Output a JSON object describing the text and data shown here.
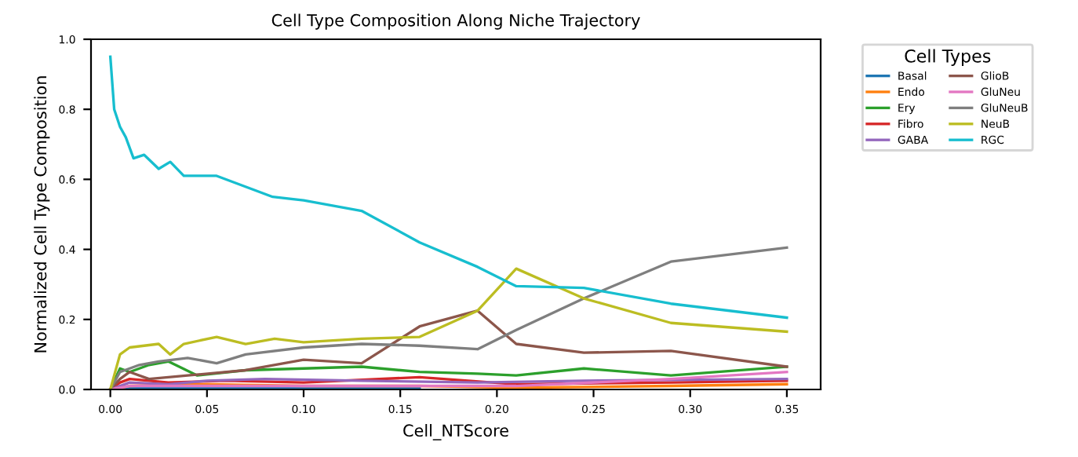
{
  "chart_data": {
    "type": "line",
    "title": "Cell Type Composition Along Niche Trajectory",
    "xlabel": "Cell_NTScore",
    "ylabel": "Normalized Cell Type Composition",
    "legend_title": "Cell Types",
    "legend": "right",
    "grid": false,
    "marker": "none",
    "line_style": "solid",
    "xlim": [
      -0.01,
      0.3675
    ],
    "ylim": [
      0,
      1.0
    ],
    "xticks": [
      {
        "value": 0,
        "label": "0.00"
      },
      {
        "value": 0.05,
        "label": "0.05"
      },
      {
        "value": 0.1,
        "label": "0.10"
      },
      {
        "value": 0.15,
        "label": "0.15"
      },
      {
        "value": 0.2,
        "label": "0.20"
      },
      {
        "value": 0.25,
        "label": "0.25"
      },
      {
        "value": 0.3,
        "label": "0.30"
      },
      {
        "value": 0.35,
        "label": "0.35"
      }
    ],
    "yticks": [
      {
        "value": 0,
        "label": "0.0"
      },
      {
        "value": 0.2,
        "label": "0.2"
      },
      {
        "value": 0.4,
        "label": "0.4"
      },
      {
        "value": 0.6,
        "label": "0.6"
      },
      {
        "value": 0.8,
        "label": "0.8"
      },
      {
        "value": 1.0,
        "label": "1.0"
      }
    ],
    "series": [
      {
        "name": "Basal",
        "color": "#1f77b4",
        "x": [
          0,
          0.01,
          0.05,
          0.1,
          0.16
        ],
        "values": [
          0,
          0.005,
          0.005,
          0.005,
          0.005
        ]
      },
      {
        "name": "Endo",
        "color": "#ff7f0e",
        "x": [
          0,
          0.01,
          0.05,
          0.1,
          0.16,
          0.21,
          0.29,
          0.35
        ],
        "values": [
          0,
          0.01,
          0.015,
          0.01,
          0.01,
          0.005,
          0.01,
          0.015
        ]
      },
      {
        "name": "Ery",
        "color": "#2ca02c",
        "x": [
          0,
          0.005,
          0.01,
          0.02,
          0.03,
          0.045,
          0.07,
          0.1,
          0.13,
          0.16,
          0.19,
          0.21,
          0.245,
          0.29,
          0.35
        ],
        "values": [
          0,
          0.06,
          0.05,
          0.07,
          0.08,
          0.04,
          0.055,
          0.06,
          0.065,
          0.05,
          0.045,
          0.04,
          0.06,
          0.04,
          0.065
        ]
      },
      {
        "name": "Fibro",
        "color": "#d62728",
        "x": [
          0,
          0.005,
          0.01,
          0.03,
          0.06,
          0.1,
          0.16,
          0.21,
          0.29,
          0.35
        ],
        "values": [
          0,
          0.02,
          0.03,
          0.02,
          0.025,
          0.02,
          0.035,
          0.015,
          0.02,
          0.025
        ]
      },
      {
        "name": "GABA",
        "color": "#9467bd",
        "x": [
          0,
          0.01,
          0.03,
          0.05,
          0.08,
          0.13,
          0.19,
          0.245,
          0.35
        ],
        "values": [
          0,
          0.02,
          0.015,
          0.025,
          0.03,
          0.025,
          0.02,
          0.025,
          0.03
        ]
      },
      {
        "name": "GlioB",
        "color": "#8c564b",
        "x": [
          0,
          0.005,
          0.01,
          0.02,
          0.04,
          0.07,
          0.1,
          0.13,
          0.16,
          0.19,
          0.21,
          0.245,
          0.29,
          0.35
        ],
        "values": [
          0,
          0.03,
          0.05,
          0.03,
          0.04,
          0.055,
          0.085,
          0.075,
          0.18,
          0.225,
          0.13,
          0.105,
          0.11,
          0.065
        ]
      },
      {
        "name": "GluNeu",
        "color": "#e377c2",
        "x": [
          0,
          0.01,
          0.05,
          0.1,
          0.16,
          0.21,
          0.29,
          0.35
        ],
        "values": [
          0,
          0.01,
          0.01,
          0.01,
          0.01,
          0.01,
          0.03,
          0.05
        ]
      },
      {
        "name": "GluNeuB",
        "color": "#7f7f7f",
        "x": [
          0,
          0.005,
          0.015,
          0.025,
          0.04,
          0.055,
          0.07,
          0.1,
          0.13,
          0.16,
          0.19,
          0.21,
          0.245,
          0.29,
          0.35
        ],
        "values": [
          0,
          0.05,
          0.07,
          0.08,
          0.09,
          0.075,
          0.1,
          0.12,
          0.13,
          0.125,
          0.115,
          0.17,
          0.26,
          0.365,
          0.405
        ]
      },
      {
        "name": "NeuB",
        "color": "#bcbd22",
        "x": [
          0,
          0.005,
          0.01,
          0.025,
          0.031,
          0.038,
          0.055,
          0.07,
          0.085,
          0.1,
          0.13,
          0.16,
          0.19,
          0.21,
          0.245,
          0.29,
          0.35
        ],
        "values": [
          0,
          0.1,
          0.12,
          0.13,
          0.1,
          0.13,
          0.15,
          0.13,
          0.145,
          0.135,
          0.145,
          0.15,
          0.225,
          0.345,
          0.26,
          0.19,
          0.165
        ]
      },
      {
        "name": "RGC",
        "color": "#17becf",
        "x": [
          0,
          0.002,
          0.005,
          0.008,
          0.012,
          0.0175,
          0.025,
          0.031,
          0.038,
          0.055,
          0.084,
          0.1,
          0.13,
          0.16,
          0.19,
          0.21,
          0.245,
          0.29,
          0.35
        ],
        "values": [
          0.95,
          0.8,
          0.75,
          0.72,
          0.66,
          0.67,
          0.63,
          0.65,
          0.61,
          0.61,
          0.55,
          0.54,
          0.51,
          0.42,
          0.35,
          0.295,
          0.29,
          0.245,
          0.205
        ]
      }
    ]
  }
}
